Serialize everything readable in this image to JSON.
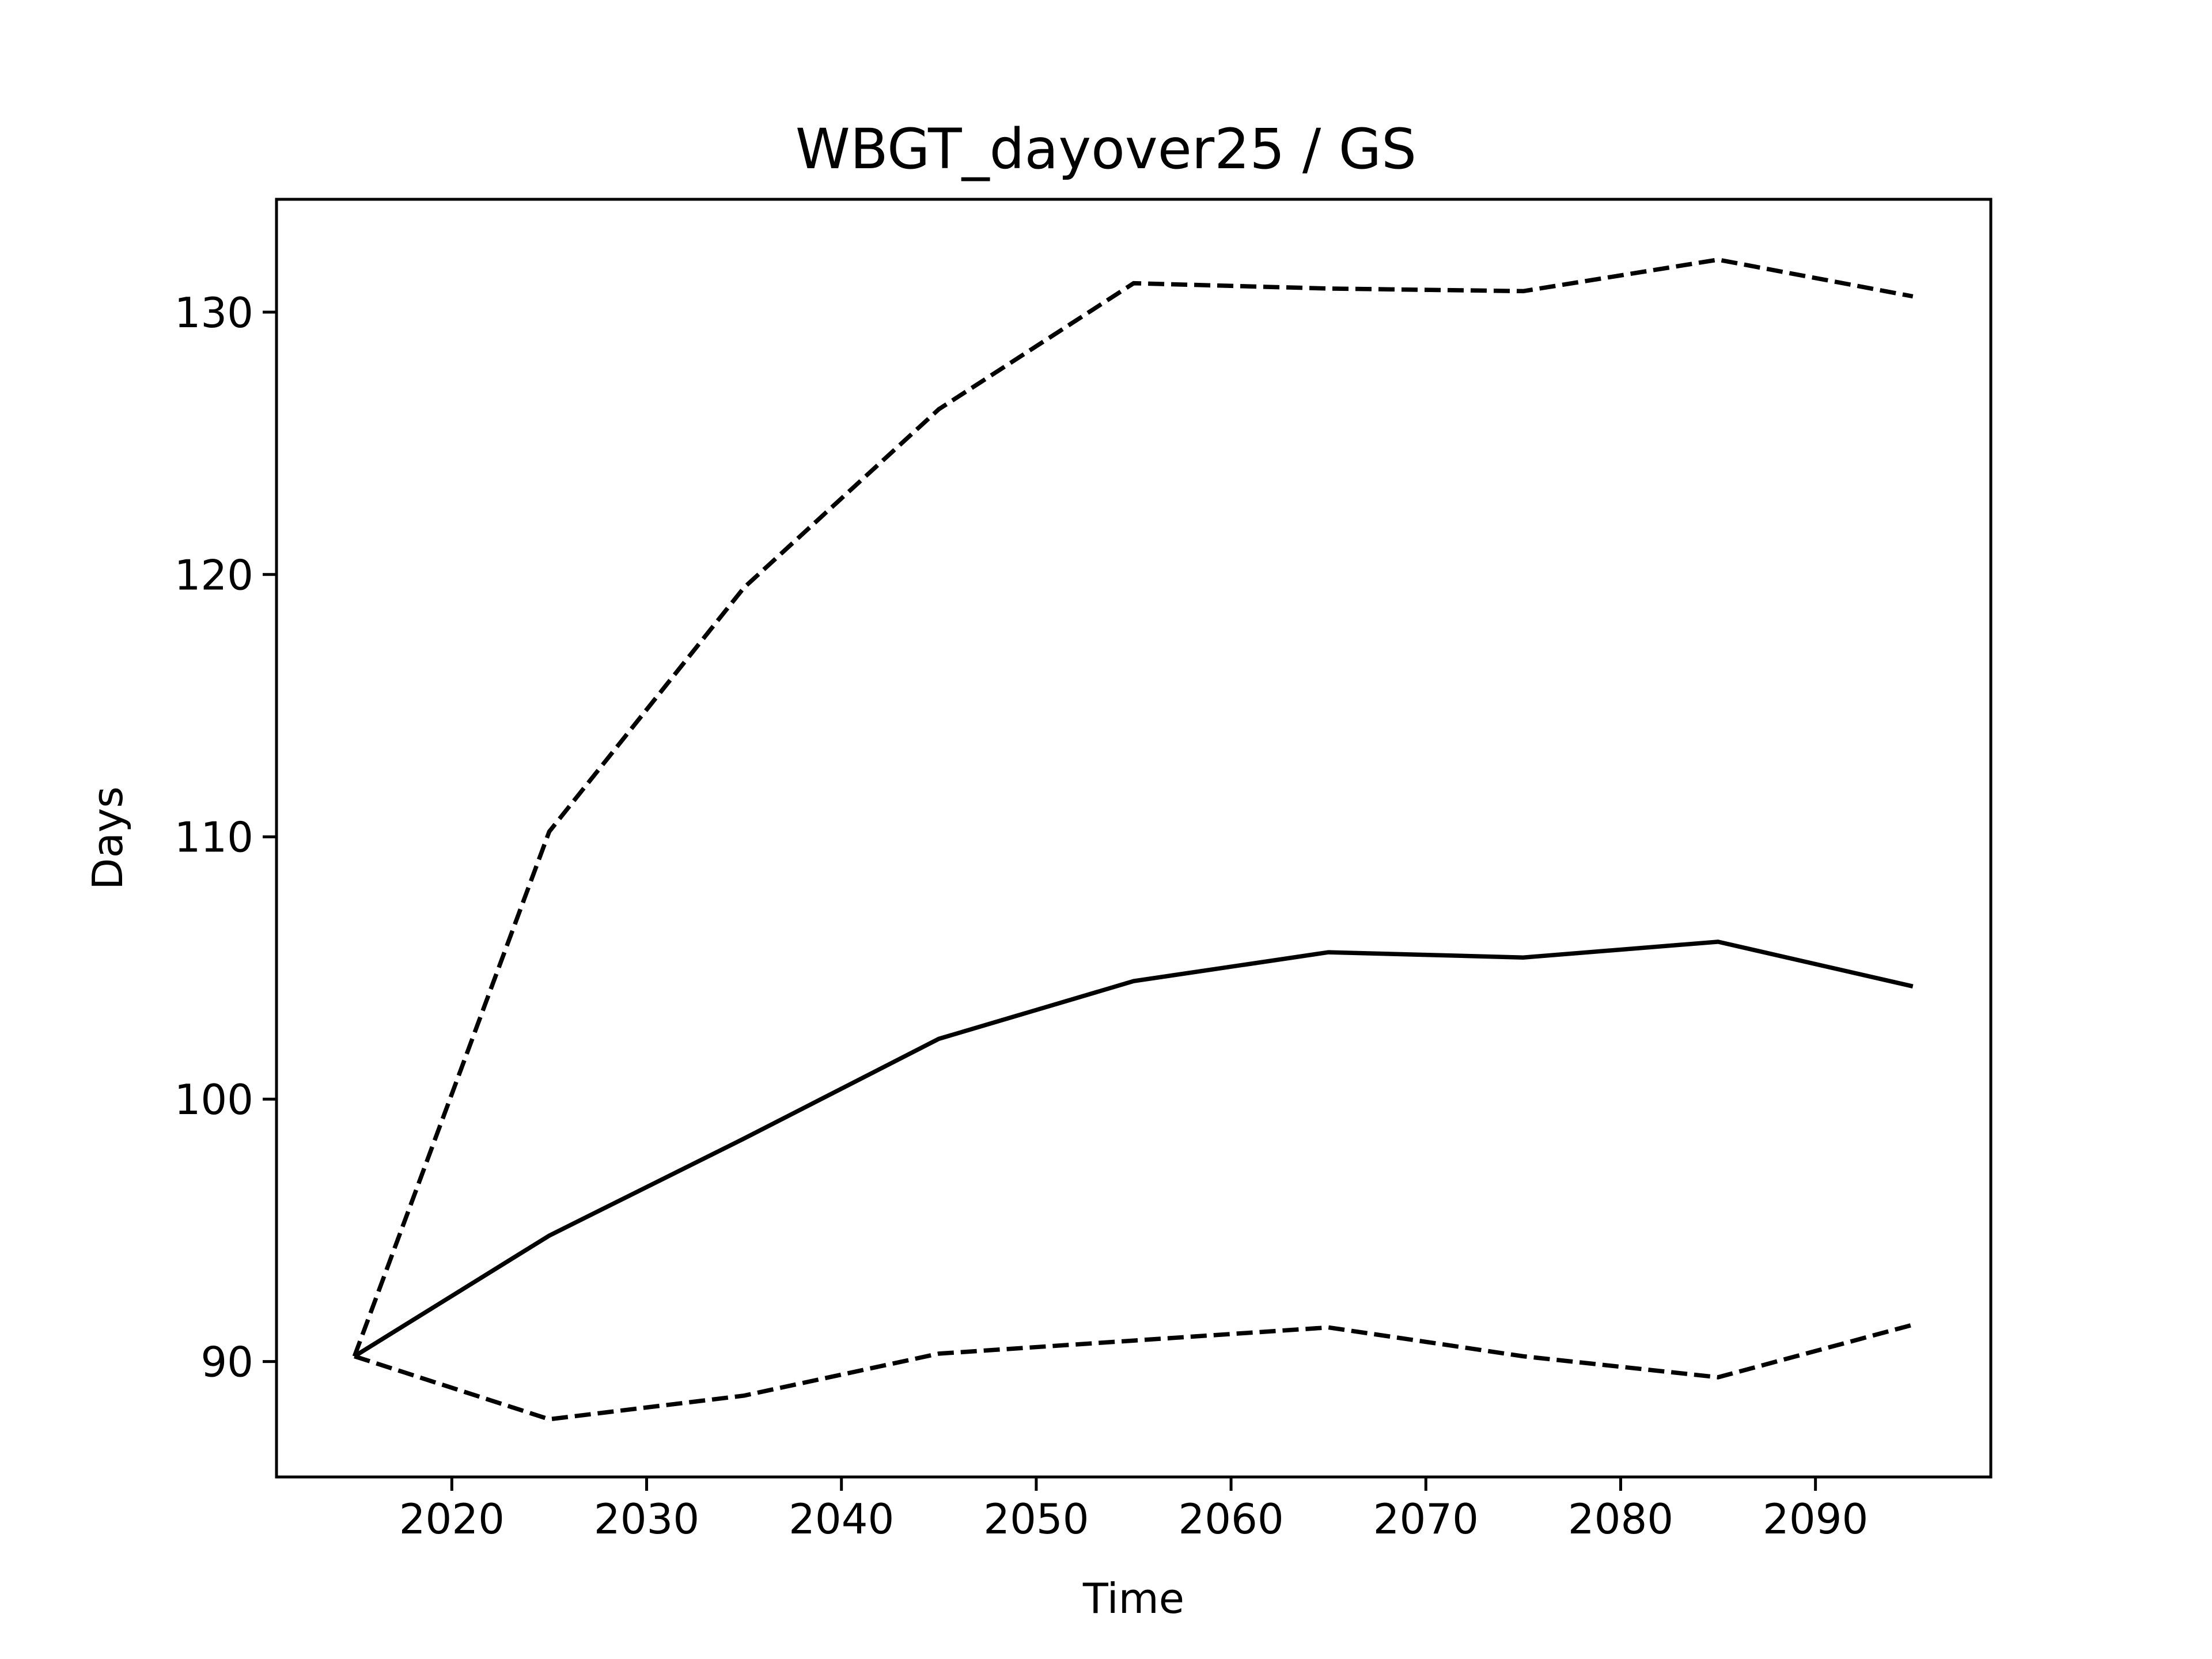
{
  "chart_data": {
    "type": "line",
    "title": "WBGT_dayover25 / GS",
    "xlabel": "Time",
    "ylabel": "Days",
    "x": [
      2015,
      2025,
      2035,
      2045,
      2055,
      2065,
      2075,
      2085,
      2095
    ],
    "xlim": [
      2011,
      2099
    ],
    "ylim": [
      85.6,
      134.3
    ],
    "xticks": [
      2020,
      2030,
      2040,
      2050,
      2060,
      2070,
      2080,
      2090
    ],
    "yticks": [
      90,
      100,
      110,
      120,
      130
    ],
    "grid": false,
    "legend": "none",
    "series": [
      {
        "values": [
          90.2,
          110.2,
          119.5,
          126.3,
          131.1,
          130.9,
          130.8,
          132.0,
          130.6
        ],
        "color": "#000000",
        "style": "dashed"
      },
      {
        "values": [
          90.2,
          94.8,
          98.5,
          102.3,
          104.5,
          105.6,
          105.4,
          106.0,
          104.3
        ],
        "color": "#000000",
        "style": "solid"
      },
      {
        "values": [
          90.2,
          87.8,
          88.7,
          90.3,
          90.8,
          91.3,
          90.2,
          89.4,
          91.4
        ],
        "color": "#000000",
        "style": "dashed"
      }
    ]
  }
}
